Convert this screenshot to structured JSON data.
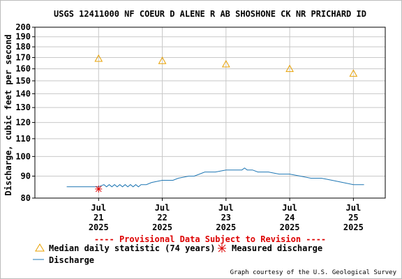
{
  "chart_data": {
    "type": "line",
    "title": "USGS 12411000 NF COEUR D ALENE R AB SHOSHONE CK NR PRICHARD ID",
    "ylabel": "Discharge, cubic feet per second",
    "xlabel": "",
    "ylim": [
      80,
      200
    ],
    "y_scale": "log",
    "y_ticks": [
      80,
      90,
      100,
      110,
      120,
      130,
      140,
      150,
      160,
      170,
      180,
      190,
      200
    ],
    "xlim": [
      "2025-07-20 00:00",
      "2025-07-25 12:00"
    ],
    "x_ticks": [
      {
        "label": [
          "Jul",
          "21",
          "2025"
        ],
        "x": "2025-07-21 00:00"
      },
      {
        "label": [
          "Jul",
          "22",
          "2025"
        ],
        "x": "2025-07-22 00:00"
      },
      {
        "label": [
          "Jul",
          "23",
          "2025"
        ],
        "x": "2025-07-23 00:00"
      },
      {
        "label": [
          "Jul",
          "24",
          "2025"
        ],
        "x": "2025-07-24 00:00"
      },
      {
        "label": [
          "Jul",
          "25",
          "2025"
        ],
        "x": "2025-07-25 00:00"
      }
    ],
    "grid": true,
    "series": [
      {
        "name": "Discharge",
        "style": "line",
        "color": "#1f77b4",
        "x": [
          "2025-07-20 12:00",
          "2025-07-21 00:00",
          "2025-07-21 02:00",
          "2025-07-21 03:00",
          "2025-07-21 04:00",
          "2025-07-21 05:00",
          "2025-07-21 06:00",
          "2025-07-21 07:00",
          "2025-07-21 08:00",
          "2025-07-21 09:00",
          "2025-07-21 10:00",
          "2025-07-21 11:00",
          "2025-07-21 12:00",
          "2025-07-21 13:00",
          "2025-07-21 14:00",
          "2025-07-21 15:00",
          "2025-07-21 16:00",
          "2025-07-21 18:00",
          "2025-07-21 20:00",
          "2025-07-22 00:00",
          "2025-07-22 04:00",
          "2025-07-22 06:00",
          "2025-07-22 10:00",
          "2025-07-22 12:00",
          "2025-07-22 14:00",
          "2025-07-22 16:00",
          "2025-07-22 20:00",
          "2025-07-23 00:00",
          "2025-07-23 04:00",
          "2025-07-23 06:00",
          "2025-07-23 07:00",
          "2025-07-23 08:00",
          "2025-07-23 10:00",
          "2025-07-23 12:00",
          "2025-07-23 16:00",
          "2025-07-23 20:00",
          "2025-07-24 00:00",
          "2025-07-24 04:00",
          "2025-07-24 08:00",
          "2025-07-24 12:00",
          "2025-07-24 16:00",
          "2025-07-24 20:00",
          "2025-07-25 00:00",
          "2025-07-25 04:00"
        ],
        "values": [
          85,
          85,
          86,
          85,
          86,
          85,
          86,
          85,
          86,
          85,
          86,
          85,
          86,
          85,
          86,
          85,
          86,
          86,
          87,
          88,
          88,
          89,
          90,
          90,
          91,
          92,
          92,
          93,
          93,
          93,
          94,
          93,
          93,
          92,
          92,
          91,
          91,
          90,
          89,
          89,
          88,
          87,
          86,
          86
        ]
      },
      {
        "name": "Median daily statistic (74 years)",
        "style": "triangle",
        "color": "#e8a000",
        "x": [
          "2025-07-21 00:00",
          "2025-07-22 00:00",
          "2025-07-23 00:00",
          "2025-07-24 00:00",
          "2025-07-25 00:00"
        ],
        "values": [
          169,
          167,
          164,
          160,
          156
        ]
      },
      {
        "name": "Measured discharge",
        "style": "asterisk",
        "color": "#dd0000",
        "x": [
          "2025-07-21 00:00"
        ],
        "values": [
          84
        ]
      }
    ],
    "annotations": [
      "---- Provisional Data Subject to Revision ----"
    ],
    "legend_position": "bottom-left",
    "credit": "Graph courtesy of the U.S. Geological Survey"
  }
}
